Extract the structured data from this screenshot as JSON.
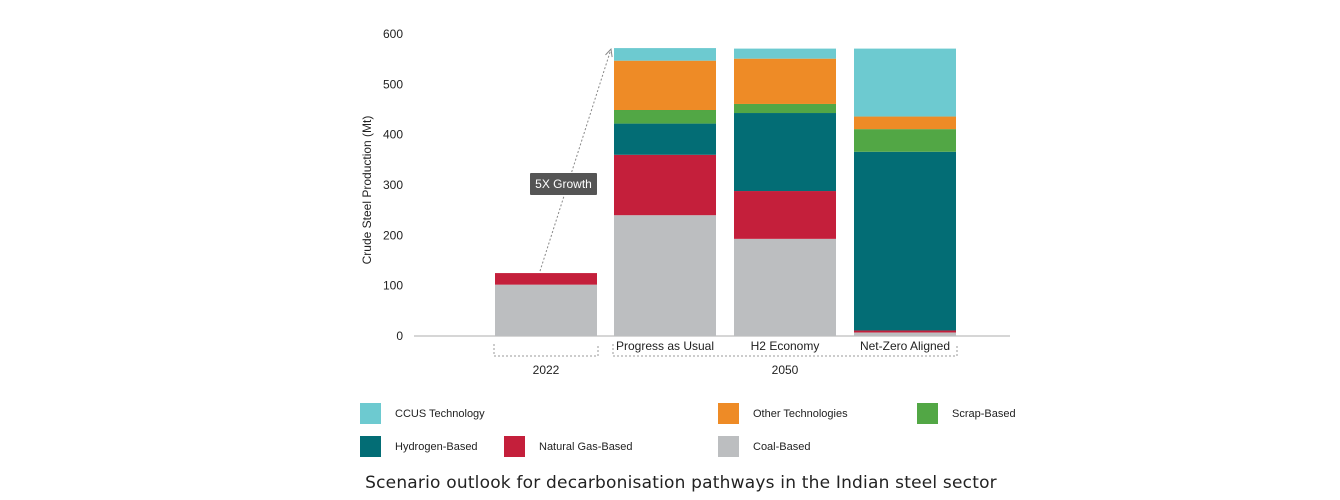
{
  "chart_data": {
    "type": "bar",
    "stacked": true,
    "ylabel": "Crude Steel Production (Mt)",
    "ylim": [
      0,
      600
    ],
    "yticks": [
      "0",
      "100",
      "200",
      "300",
      "400",
      "500",
      "600"
    ],
    "categories": [
      "",
      "Progress as Usual",
      "H2 Economy",
      "Net-Zero Aligned"
    ],
    "groups": [
      {
        "label": "2022",
        "categories": [
          0
        ]
      },
      {
        "label": "2050",
        "categories": [
          1,
          2,
          3
        ]
      }
    ],
    "series": [
      {
        "name": "Coal-Based",
        "color": "#bcbec0",
        "values": [
          102,
          240,
          193,
          7
        ]
      },
      {
        "name": "Natural Gas-Based",
        "color": "#c41f3b",
        "values": [
          23,
          120,
          95,
          4
        ]
      },
      {
        "name": "Hydrogen-Based",
        "color": "#036d75",
        "values": [
          0,
          62,
          155,
          355
        ]
      },
      {
        "name": "Scrap-Based",
        "color": "#52a745",
        "values": [
          0,
          27,
          18,
          45
        ]
      },
      {
        "name": "Other Technologies",
        "color": "#ee8b26",
        "values": [
          0,
          98,
          90,
          25
        ]
      },
      {
        "name": "CCUS Technology",
        "color": "#6dcad0",
        "values": [
          0,
          25,
          20,
          135
        ]
      }
    ],
    "annotation": "5X Growth"
  },
  "legend": {
    "items": [
      {
        "label": "CCUS Technology",
        "color": "#6dcad0"
      },
      {
        "label": "Other Technologies",
        "color": "#ee8b26"
      },
      {
        "label": "Scrap-Based",
        "color": "#52a745"
      },
      {
        "label": "Hydrogen-Based",
        "color": "#036d75"
      },
      {
        "label": "Natural Gas-Based",
        "color": "#c41f3b"
      },
      {
        "label": "Coal-Based",
        "color": "#bcbec0"
      }
    ]
  },
  "caption": "Scenario outlook for decarbonisation pathways in the Indian steel sector"
}
